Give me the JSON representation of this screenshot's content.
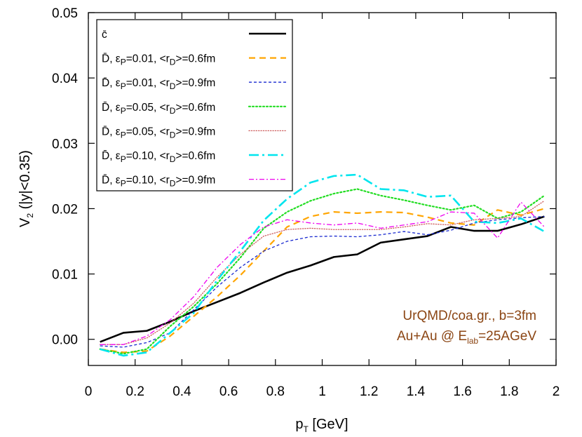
{
  "chart_data": {
    "type": "line",
    "xlabel": "p",
    "xlabel_sub": "T",
    "xlabel_rest": " [GeV]",
    "ylabel": "V",
    "ylabel_sub": "2",
    "ylabel_rest": " (|y|<0.35)",
    "xlim": [
      0,
      2
    ],
    "ylim": [
      -0.004,
      0.05
    ],
    "xticks": [
      "0",
      "0.2",
      "0.4",
      "0.6",
      "0.8",
      "1",
      "1.2",
      "1.4",
      "1.6",
      "1.8",
      "2"
    ],
    "yticks": [
      "0.00",
      "0.01",
      "0.02",
      "0.03",
      "0.04",
      "0.05"
    ],
    "grid": false,
    "legend_position": "top-left",
    "annotation_lines": [
      {
        "text": "UrQMD/coa.gr., b=3fm"
      },
      {
        "text": "Au+Au @ E",
        "sub": "lab",
        "rest": "=25AGeV"
      }
    ],
    "x": [
      0.05,
      0.15,
      0.25,
      0.35,
      0.45,
      0.55,
      0.65,
      0.75,
      0.85,
      0.95,
      1.05,
      1.15,
      1.25,
      1.35,
      1.45,
      1.55,
      1.65,
      1.75,
      1.85,
      1.95
    ],
    "series": [
      {
        "label": "c̄",
        "color": "#000000",
        "style": "solid",
        "width": 2.6,
        "values": [
          -0.0004,
          0.001,
          0.0013,
          0.0027,
          0.0043,
          0.0057,
          0.0071,
          0.0087,
          0.0102,
          0.0113,
          0.0126,
          0.013,
          0.0148,
          0.0153,
          0.0158,
          0.0172,
          0.0166,
          0.0166,
          0.0176,
          0.0188
        ]
      },
      {
        "label_pre": "D̄, ε",
        "label_eps_sub": "P",
        "label_mid": "=0.01, <r",
        "label_r_sub": "D",
        "label_post": ">=0.6fm",
        "color": "#ffa500",
        "style": "dashed",
        "width": 2.2,
        "values": [
          -0.0015,
          -0.002,
          -0.0018,
          0.0005,
          0.0035,
          0.0065,
          0.0098,
          0.0135,
          0.0172,
          0.0188,
          0.0195,
          0.0193,
          0.0195,
          0.0194,
          0.0187,
          0.0178,
          0.0175,
          0.0198,
          0.019,
          0.02
        ]
      },
      {
        "label_pre": "D̄, ε",
        "label_eps_sub": "P",
        "label_mid": "=0.01, <r",
        "label_r_sub": "D",
        "label_post": ">=0.9fm",
        "color": "#1a2ad0",
        "style": "dashed-fine",
        "width": 1.3,
        "values": [
          -0.001,
          -0.0012,
          -0.0005,
          0.001,
          0.0045,
          0.008,
          0.011,
          0.0135,
          0.015,
          0.0157,
          0.0158,
          0.0157,
          0.016,
          0.0165,
          0.016,
          0.0167,
          0.0178,
          0.0183,
          0.0186,
          0.0188
        ]
      },
      {
        "label_pre": "D̄, ε",
        "label_eps_sub": "P",
        "label_mid": "=0.05, <r",
        "label_r_sub": "D",
        "label_post": ">=0.6fm",
        "color": "#22dd22",
        "style": "dotted",
        "width": 2.2,
        "values": [
          -0.0015,
          -0.0022,
          -0.0015,
          0.002,
          0.005,
          0.0085,
          0.0125,
          0.017,
          0.0195,
          0.0212,
          0.0223,
          0.023,
          0.022,
          0.0213,
          0.0205,
          0.0198,
          0.0205,
          0.0185,
          0.0195,
          0.022
        ]
      },
      {
        "label_pre": "D̄, ε",
        "label_eps_sub": "P",
        "label_mid": "=0.05, <r",
        "label_r_sub": "D",
        "label_post": ">=0.9fm",
        "color": "#cd5c5c",
        "style": "dotted-fine",
        "width": 1.3,
        "values": [
          -0.0008,
          -0.0008,
          0.0002,
          0.0025,
          0.0055,
          0.0095,
          0.013,
          0.0158,
          0.0168,
          0.017,
          0.0168,
          0.0168,
          0.0168,
          0.0172,
          0.0177,
          0.0175,
          0.0183,
          0.0185,
          0.0188,
          0.0212
        ]
      },
      {
        "label_pre": "D̄, ε",
        "label_eps_sub": "P",
        "label_mid": "=0.10, <r",
        "label_r_sub": "D",
        "label_post": ">=0.6fm",
        "color": "#00e5ee",
        "style": "dashdot",
        "width": 2.6,
        "values": [
          -0.0015,
          -0.0025,
          -0.002,
          0.001,
          0.004,
          0.009,
          0.0135,
          0.0182,
          0.0215,
          0.024,
          0.025,
          0.0252,
          0.023,
          0.0228,
          0.0218,
          0.022,
          0.018,
          0.0178,
          0.0185,
          0.0165
        ]
      },
      {
        "label_pre": "D̄, ε",
        "label_eps_sub": "P",
        "label_mid": "=0.10, <r",
        "label_r_sub": "D",
        "label_post": ">=0.9fm",
        "color": "#ee00ee",
        "style": "dashdot-fine",
        "width": 1.3,
        "values": [
          -0.0008,
          -0.0008,
          0.0005,
          0.003,
          0.0065,
          0.011,
          0.0145,
          0.0172,
          0.0183,
          0.0178,
          0.0175,
          0.0178,
          0.017,
          0.0175,
          0.018,
          0.0195,
          0.0193,
          0.0155,
          0.021,
          0.0172
        ]
      }
    ]
  }
}
